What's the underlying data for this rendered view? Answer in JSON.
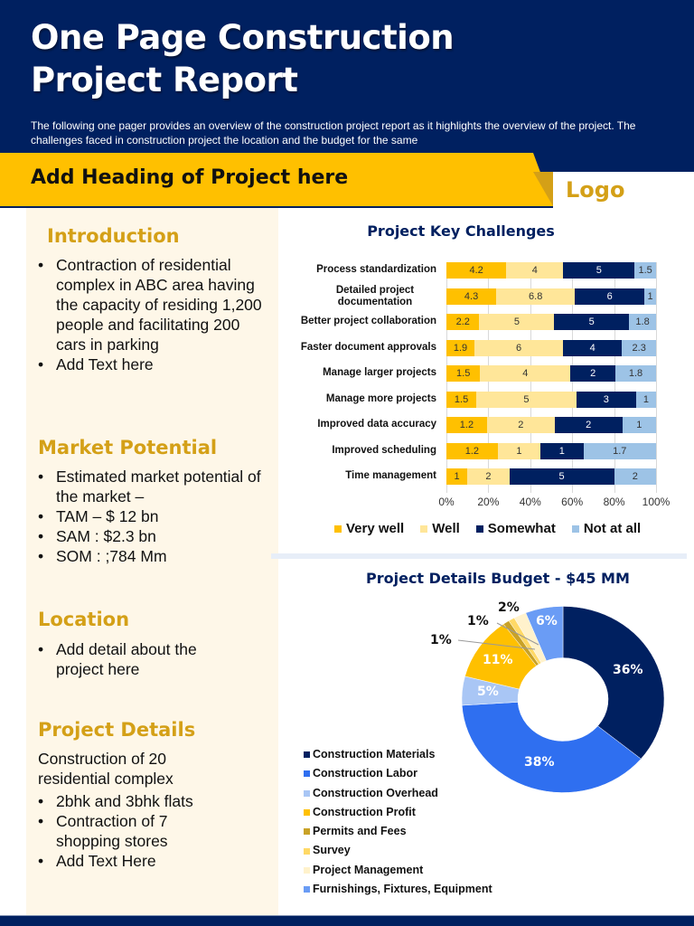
{
  "header": {
    "title_line1": "One Page Construction",
    "title_line2": "Project Report",
    "subtitle": "The following one pager provides an overview of the construction project report as it highlights the overview of the project. The challenges faced in construction project the location and the budget for the same"
  },
  "banner": {
    "heading": "Add Heading of Project here",
    "logo": "Logo"
  },
  "left_panel": {
    "introduction": {
      "title": "Introduction",
      "bullets": [
        "Contraction of residential complex in ABC area having the capacity of residing 1,200 people and facilitating 200 cars in parking",
        "Add Text here"
      ]
    },
    "market_potential": {
      "title": "Market Potential",
      "bullets": [
        "Estimated market potential of the market –",
        "TAM – $ 12 bn",
        "SAM : $2.3 bn",
        "SOM : ;784 Mm"
      ]
    },
    "location": {
      "title": "Location",
      "bullets": [
        "Add detail about the project here"
      ]
    },
    "project_details": {
      "title": "Project Details",
      "text": "Construction of 20 residential complex",
      "bullets": [
        "2bhk and 3bhk flats",
        "Contraction of 7 shopping stores",
        "Add Text Here"
      ]
    }
  },
  "chart_data": [
    {
      "type": "bar",
      "orientation": "horizontal",
      "stacked": "percent",
      "title": "Project Key Challenges",
      "categories": [
        "Process standardization",
        "Detailed project documentation",
        "Better project collaboration",
        "Faster document approvals",
        "Manage larger projects",
        "Manage more projects",
        "Improved data accuracy",
        "Improved scheduling",
        "Time management"
      ],
      "series": [
        {
          "name": "Very well",
          "color": "#FFC000",
          "values": [
            4.2,
            4.3,
            2.2,
            1.9,
            1.5,
            1.5,
            1.2,
            1.2,
            1
          ]
        },
        {
          "name": "Well",
          "color": "#FFE699",
          "values": [
            4,
            6.8,
            5,
            6,
            4,
            5,
            2,
            1,
            2
          ]
        },
        {
          "name": "Somewhat",
          "color": "#002060",
          "values": [
            5,
            6,
            5,
            4,
            2,
            3,
            2,
            1,
            5
          ]
        },
        {
          "name": "Not at all",
          "color": "#9DC3E6",
          "values": [
            1.5,
            1,
            1.8,
            2.3,
            1.8,
            1,
            1,
            1.7,
            2
          ]
        }
      ],
      "xticks": [
        "0%",
        "20%",
        "40%",
        "60%",
        "80%",
        "100%"
      ],
      "xlim": [
        0,
        100
      ],
      "grid": true,
      "legend_position": "bottom"
    },
    {
      "type": "pie",
      "donut": true,
      "title": "Project Details  Budget - $45 MM",
      "labels": [
        "Construction Materials",
        "Construction Labor",
        "Construction Overhead",
        "Construction Profit",
        "Permits and Fees",
        "Survey",
        "Project Management",
        "Furnishings, Fixtures, Equipment"
      ],
      "values": [
        36,
        38,
        5,
        11,
        1,
        1,
        2,
        6
      ],
      "value_labels": [
        "36%",
        "38%",
        "5%",
        "11%",
        "1%",
        "1%",
        "2%",
        "6%"
      ],
      "colors": [
        "#002060",
        "#2F6FF0",
        "#A9C6F5",
        "#FFC000",
        "#C9A227",
        "#FFD966",
        "#FFF2CC",
        "#6A9CF5"
      ],
      "legend_position": "left"
    }
  ]
}
